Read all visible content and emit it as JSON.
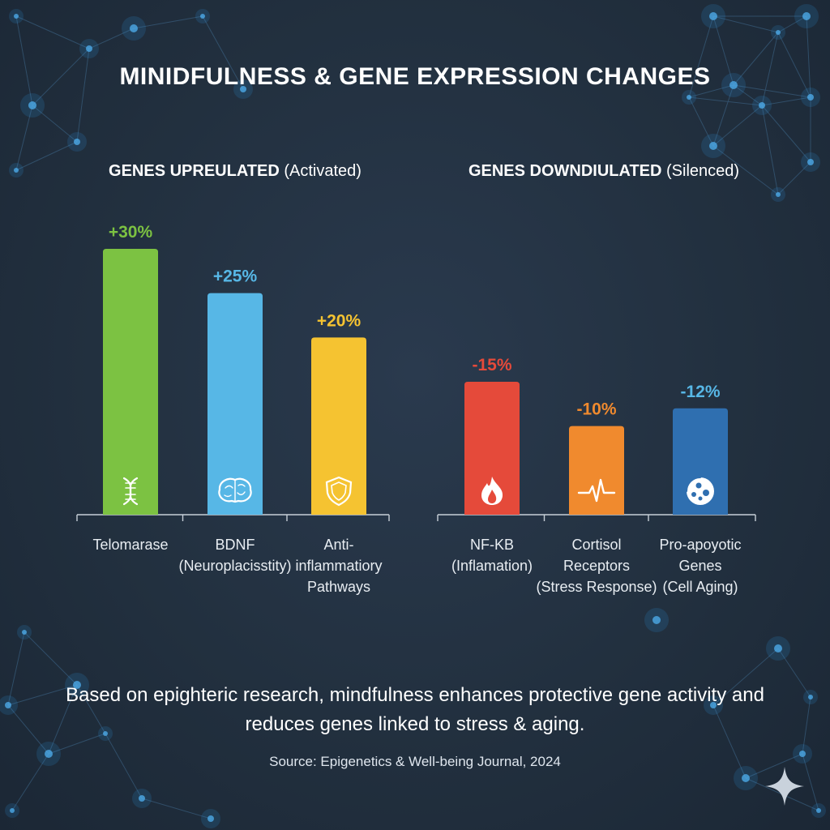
{
  "title": "MINIDFULNESS & GENE EXPRESSION CHANGES",
  "chart_data": [
    {
      "type": "bar",
      "title": "GENES UPREULATED (Activated)",
      "title_bold": "GENES UPREULATED",
      "title_rest": "(Activated)",
      "categories": [
        "Telomarase",
        "BDNF (Neuroplacisstity)",
        "Anti-inflammatiory Pathways"
      ],
      "category_lines": [
        [
          "Telomarase"
        ],
        [
          "BDNF",
          "(Neuroplacisstity)"
        ],
        [
          "Anti-",
          "inflammatiory",
          "Pathways"
        ]
      ],
      "values": [
        30,
        25,
        20
      ],
      "value_labels": [
        "+30%",
        "+25%",
        "+20%"
      ],
      "colors": [
        "#7cc242",
        "#57b7e6",
        "#f5c331"
      ],
      "label_colors": [
        "#7cc242",
        "#57b7e6",
        "#f5c331"
      ],
      "icons": [
        "dna-icon",
        "brain-icon",
        "shield-icon"
      ]
    },
    {
      "type": "bar",
      "title": "GENES DOWNDIULATED (Silenced)",
      "title_bold": "GENES DOWNDIULATED",
      "title_rest": "(Silenced)",
      "categories": [
        "NF-KB (Inflamation)",
        "Cortisol Receptors (Stress Response)",
        "Pro-apoyotic Genes (Cell Aging)"
      ],
      "category_lines": [
        [
          "NF-KB",
          "(Inflamation)"
        ],
        [
          "Cortisol",
          "Receptors",
          "(Stress Response)"
        ],
        [
          "Pro-apoyotic",
          "Genes",
          "(Cell Aging)"
        ]
      ],
      "values": [
        -15,
        -10,
        -12
      ],
      "value_labels": [
        "-15%",
        "-10%",
        "-12%"
      ],
      "colors": [
        "#e54a3a",
        "#f08a2e",
        "#2f6fb0"
      ],
      "label_colors": [
        "#e54a3a",
        "#f08a2e",
        "#57b7e6"
      ],
      "icons": [
        "flame-icon",
        "heartbeat-icon",
        "cell-icon"
      ]
    }
  ],
  "footnote": "Based on epighteric research, mindfulness enhances protective gene activity and reduces genes linked to stress & aging.",
  "source": "Source: Epigenetics & Well-being Journal, 2024"
}
